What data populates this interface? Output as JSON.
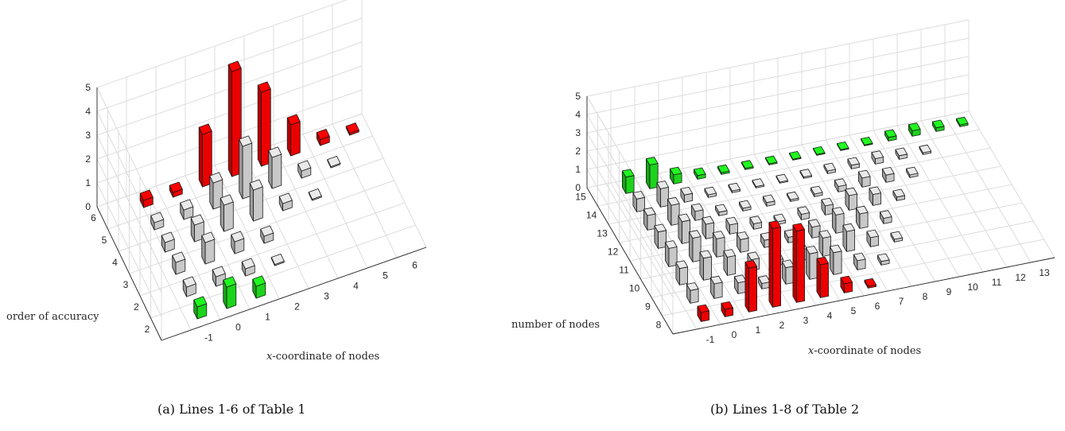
{
  "chart_data": [
    {
      "type": "bar3d",
      "xlabel_prefix": "x",
      "xlabel": "-coordinate of nodes",
      "ylabel": "order of accuracy",
      "zlabel": "",
      "x_ticks": [
        "-1",
        "0",
        "1",
        "2",
        "3",
        "4",
        "5",
        "6"
      ],
      "y_ticks": [
        "2",
        "2",
        "3",
        "4",
        "5",
        "6"
      ],
      "z_ticks": [
        "0",
        "1",
        "2",
        "3",
        "4",
        "5"
      ],
      "xlim": [
        -2,
        7
      ],
      "zlim": [
        0,
        5
      ],
      "colors": {
        "red": "#ff0000",
        "gray": "#d9d9d9",
        "green": "#1ee61e"
      },
      "caption": "(a) Lines 1-6 of Table 1",
      "bars": [
        {
          "row": 6,
          "x": -1,
          "z": 0.3,
          "color": "red"
        },
        {
          "row": 6,
          "x": 0,
          "z": 0.2,
          "color": "red"
        },
        {
          "row": 6,
          "x": 1,
          "z": 2.2,
          "color": "red"
        },
        {
          "row": 6,
          "x": 2,
          "z": 4.4,
          "color": "red"
        },
        {
          "row": 6,
          "x": 3,
          "z": 3.1,
          "color": "red"
        },
        {
          "row": 6,
          "x": 4,
          "z": 1.3,
          "color": "red"
        },
        {
          "row": 6,
          "x": 5,
          "z": 0.25,
          "color": "red"
        },
        {
          "row": 6,
          "x": 6,
          "z": 0.08,
          "color": "red"
        },
        {
          "row": 5,
          "x": -1,
          "z": 0.3,
          "color": "gray"
        },
        {
          "row": 5,
          "x": 0,
          "z": 0.4,
          "color": "gray"
        },
        {
          "row": 5,
          "x": 1,
          "z": 1.1,
          "color": "gray"
        },
        {
          "row": 5,
          "x": 2,
          "z": 2.2,
          "color": "gray"
        },
        {
          "row": 5,
          "x": 3,
          "z": 1.3,
          "color": "gray"
        },
        {
          "row": 5,
          "x": 4,
          "z": 0.3,
          "color": "gray"
        },
        {
          "row": 5,
          "x": 5,
          "z": 0.05,
          "color": "gray"
        },
        {
          "row": 4,
          "x": -1,
          "z": 0.4,
          "color": "gray"
        },
        {
          "row": 4,
          "x": 0,
          "z": 0.7,
          "color": "gray"
        },
        {
          "row": 4,
          "x": 1,
          "z": 1.1,
          "color": "gray"
        },
        {
          "row": 4,
          "x": 2,
          "z": 1.3,
          "color": "gray"
        },
        {
          "row": 4,
          "x": 3,
          "z": 0.3,
          "color": "gray"
        },
        {
          "row": 4,
          "x": 4,
          "z": 0.05,
          "color": "gray"
        },
        {
          "row": 3,
          "x": -1,
          "z": 0.5,
          "color": "gray"
        },
        {
          "row": 3,
          "x": 0,
          "z": 0.9,
          "color": "gray"
        },
        {
          "row": 3,
          "x": 1,
          "z": 0.5,
          "color": "gray"
        },
        {
          "row": 3,
          "x": 2,
          "z": 0.3,
          "color": "gray"
        },
        {
          "row": 2,
          "x": -1,
          "z": 0.4,
          "color": "gray"
        },
        {
          "row": 2,
          "x": 0,
          "z": 0.4,
          "color": "gray"
        },
        {
          "row": 2,
          "x": 1,
          "z": 0.3,
          "color": "gray"
        },
        {
          "row": 2,
          "x": 2,
          "z": 0.05,
          "color": "gray"
        },
        {
          "row": 1,
          "x": -1,
          "z": 0.5,
          "color": "green"
        },
        {
          "row": 1,
          "x": 0,
          "z": 0.9,
          "color": "green"
        },
        {
          "row": 1,
          "x": 1,
          "z": 0.5,
          "color": "green"
        }
      ]
    },
    {
      "type": "bar3d",
      "xlabel_prefix": "x",
      "xlabel": "-coordinate of nodes",
      "ylabel": "number of nodes",
      "zlabel": "",
      "x_ticks": [
        "-1",
        "0",
        "1",
        "2",
        "3",
        "4",
        "5",
        "6",
        "7",
        "8",
        "9",
        "10",
        "11",
        "12",
        "13"
      ],
      "y_ticks": [
        "8",
        "9",
        "10",
        "11",
        "12",
        "13",
        "14",
        "15"
      ],
      "z_ticks": [
        "0",
        "1",
        "2",
        "3",
        "4",
        "5"
      ],
      "xlim": [
        -2,
        14
      ],
      "zlim": [
        0,
        5
      ],
      "colors": {
        "red": "#ff0000",
        "gray": "#d9d9d9",
        "green": "#1ee61e"
      },
      "caption": "(b) Lines 1-8 of Table 2",
      "bars": [
        {
          "row": 15,
          "x": -1,
          "z": 0.9,
          "color": "green"
        },
        {
          "row": 15,
          "x": 0,
          "z": 1.3,
          "color": "green"
        },
        {
          "row": 15,
          "x": 1,
          "z": 0.5,
          "color": "green"
        },
        {
          "row": 15,
          "x": 2,
          "z": 0.2,
          "color": "green"
        },
        {
          "row": 15,
          "x": 3,
          "z": 0.1,
          "color": "green"
        },
        {
          "row": 15,
          "x": 4,
          "z": 0.08,
          "color": "green"
        },
        {
          "row": 15,
          "x": 5,
          "z": 0.06,
          "color": "green"
        },
        {
          "row": 15,
          "x": 6,
          "z": 0.05,
          "color": "green"
        },
        {
          "row": 15,
          "x": 7,
          "z": 0.05,
          "color": "green"
        },
        {
          "row": 15,
          "x": 8,
          "z": 0.05,
          "color": "green"
        },
        {
          "row": 15,
          "x": 9,
          "z": 0.05,
          "color": "green"
        },
        {
          "row": 15,
          "x": 10,
          "z": 0.2,
          "color": "green"
        },
        {
          "row": 15,
          "x": 11,
          "z": 0.3,
          "color": "green"
        },
        {
          "row": 15,
          "x": 12,
          "z": 0.2,
          "color": "green"
        },
        {
          "row": 15,
          "x": 13,
          "z": 0.1,
          "color": "green"
        },
        {
          "row": 14,
          "x": -1,
          "z": 0.7,
          "color": "gray"
        },
        {
          "row": 14,
          "x": 0,
          "z": 1.0,
          "color": "gray"
        },
        {
          "row": 14,
          "x": 1,
          "z": 0.4,
          "color": "gray"
        },
        {
          "row": 14,
          "x": 2,
          "z": 0.15,
          "color": "gray"
        },
        {
          "row": 14,
          "x": 3,
          "z": 0.1,
          "color": "gray"
        },
        {
          "row": 14,
          "x": 4,
          "z": 0.08,
          "color": "gray"
        },
        {
          "row": 14,
          "x": 5,
          "z": 0.06,
          "color": "gray"
        },
        {
          "row": 14,
          "x": 6,
          "z": 0.08,
          "color": "gray"
        },
        {
          "row": 14,
          "x": 7,
          "z": 0.15,
          "color": "gray"
        },
        {
          "row": 14,
          "x": 8,
          "z": 0.2,
          "color": "gray"
        },
        {
          "row": 14,
          "x": 9,
          "z": 0.3,
          "color": "gray"
        },
        {
          "row": 14,
          "x": 10,
          "z": 0.2,
          "color": "gray"
        },
        {
          "row": 14,
          "x": 11,
          "z": 0.1,
          "color": "gray"
        },
        {
          "row": 13,
          "x": -1,
          "z": 0.8,
          "color": "gray"
        },
        {
          "row": 13,
          "x": 0,
          "z": 1.1,
          "color": "gray"
        },
        {
          "row": 13,
          "x": 1,
          "z": 0.5,
          "color": "gray"
        },
        {
          "row": 13,
          "x": 2,
          "z": 0.2,
          "color": "gray"
        },
        {
          "row": 13,
          "x": 3,
          "z": 0.15,
          "color": "gray"
        },
        {
          "row": 13,
          "x": 4,
          "z": 0.2,
          "color": "gray"
        },
        {
          "row": 13,
          "x": 5,
          "z": 0.1,
          "color": "gray"
        },
        {
          "row": 13,
          "x": 6,
          "z": 0.15,
          "color": "gray"
        },
        {
          "row": 13,
          "x": 7,
          "z": 0.3,
          "color": "gray"
        },
        {
          "row": 13,
          "x": 8,
          "z": 0.5,
          "color": "gray"
        },
        {
          "row": 13,
          "x": 9,
          "z": 0.4,
          "color": "gray"
        },
        {
          "row": 13,
          "x": 10,
          "z": 0.15,
          "color": "gray"
        },
        {
          "row": 12,
          "x": -1,
          "z": 0.9,
          "color": "gray"
        },
        {
          "row": 12,
          "x": 0,
          "z": 1.2,
          "color": "gray"
        },
        {
          "row": 12,
          "x": 1,
          "z": 0.8,
          "color": "gray"
        },
        {
          "row": 12,
          "x": 2,
          "z": 0.5,
          "color": "gray"
        },
        {
          "row": 12,
          "x": 3,
          "z": 0.3,
          "color": "gray"
        },
        {
          "row": 12,
          "x": 4,
          "z": 0.15,
          "color": "gray"
        },
        {
          "row": 12,
          "x": 5,
          "z": 0.3,
          "color": "gray"
        },
        {
          "row": 12,
          "x": 6,
          "z": 0.5,
          "color": "gray"
        },
        {
          "row": 12,
          "x": 7,
          "z": 0.8,
          "color": "gray"
        },
        {
          "row": 12,
          "x": 8,
          "z": 0.6,
          "color": "gray"
        },
        {
          "row": 12,
          "x": 9,
          "z": 0.2,
          "color": "gray"
        },
        {
          "row": 11,
          "x": -1,
          "z": 1.0,
          "color": "gray"
        },
        {
          "row": 11,
          "x": 0,
          "z": 1.3,
          "color": "gray"
        },
        {
          "row": 11,
          "x": 1,
          "z": 1.0,
          "color": "gray"
        },
        {
          "row": 11,
          "x": 2,
          "z": 0.7,
          "color": "gray"
        },
        {
          "row": 11,
          "x": 3,
          "z": 0.4,
          "color": "gray"
        },
        {
          "row": 11,
          "x": 4,
          "z": 0.3,
          "color": "gray"
        },
        {
          "row": 11,
          "x": 5,
          "z": 0.6,
          "color": "gray"
        },
        {
          "row": 11,
          "x": 6,
          "z": 1.0,
          "color": "gray"
        },
        {
          "row": 11,
          "x": 7,
          "z": 0.8,
          "color": "gray"
        },
        {
          "row": 11,
          "x": 8,
          "z": 0.3,
          "color": "gray"
        },
        {
          "row": 10,
          "x": -1,
          "z": 0.9,
          "color": "gray"
        },
        {
          "row": 10,
          "x": 0,
          "z": 1.2,
          "color": "gray"
        },
        {
          "row": 10,
          "x": 1,
          "z": 1.0,
          "color": "gray"
        },
        {
          "row": 10,
          "x": 2,
          "z": 0.6,
          "color": "gray"
        },
        {
          "row": 10,
          "x": 3,
          "z": 0.3,
          "color": "gray"
        },
        {
          "row": 10,
          "x": 4,
          "z": 0.6,
          "color": "gray"
        },
        {
          "row": 10,
          "x": 5,
          "z": 1.0,
          "color": "gray"
        },
        {
          "row": 10,
          "x": 6,
          "z": 1.1,
          "color": "gray"
        },
        {
          "row": 10,
          "x": 7,
          "z": 0.5,
          "color": "gray"
        },
        {
          "row": 10,
          "x": 8,
          "z": 0.15,
          "color": "gray"
        },
        {
          "row": 9,
          "x": -1,
          "z": 0.7,
          "color": "gray"
        },
        {
          "row": 9,
          "x": 0,
          "z": 0.8,
          "color": "gray"
        },
        {
          "row": 9,
          "x": 1,
          "z": 0.6,
          "color": "gray"
        },
        {
          "row": 9,
          "x": 2,
          "z": 0.3,
          "color": "gray"
        },
        {
          "row": 9,
          "x": 3,
          "z": 0.9,
          "color": "gray"
        },
        {
          "row": 9,
          "x": 4,
          "z": 1.4,
          "color": "gray"
        },
        {
          "row": 9,
          "x": 5,
          "z": 1.2,
          "color": "gray"
        },
        {
          "row": 9,
          "x": 6,
          "z": 0.5,
          "color": "gray"
        },
        {
          "row": 9,
          "x": 7,
          "z": 0.2,
          "color": "gray"
        },
        {
          "row": 8,
          "x": -1,
          "z": 0.5,
          "color": "red"
        },
        {
          "row": 8,
          "x": 0,
          "z": 0.4,
          "color": "red"
        },
        {
          "row": 8,
          "x": 1,
          "z": 2.4,
          "color": "red"
        },
        {
          "row": 8,
          "x": 2,
          "z": 4.3,
          "color": "red"
        },
        {
          "row": 8,
          "x": 3,
          "z": 3.9,
          "color": "red"
        },
        {
          "row": 8,
          "x": 4,
          "z": 1.8,
          "color": "red"
        },
        {
          "row": 8,
          "x": 5,
          "z": 0.5,
          "color": "red"
        },
        {
          "row": 8,
          "x": 6,
          "z": 0.1,
          "color": "red"
        }
      ]
    }
  ]
}
